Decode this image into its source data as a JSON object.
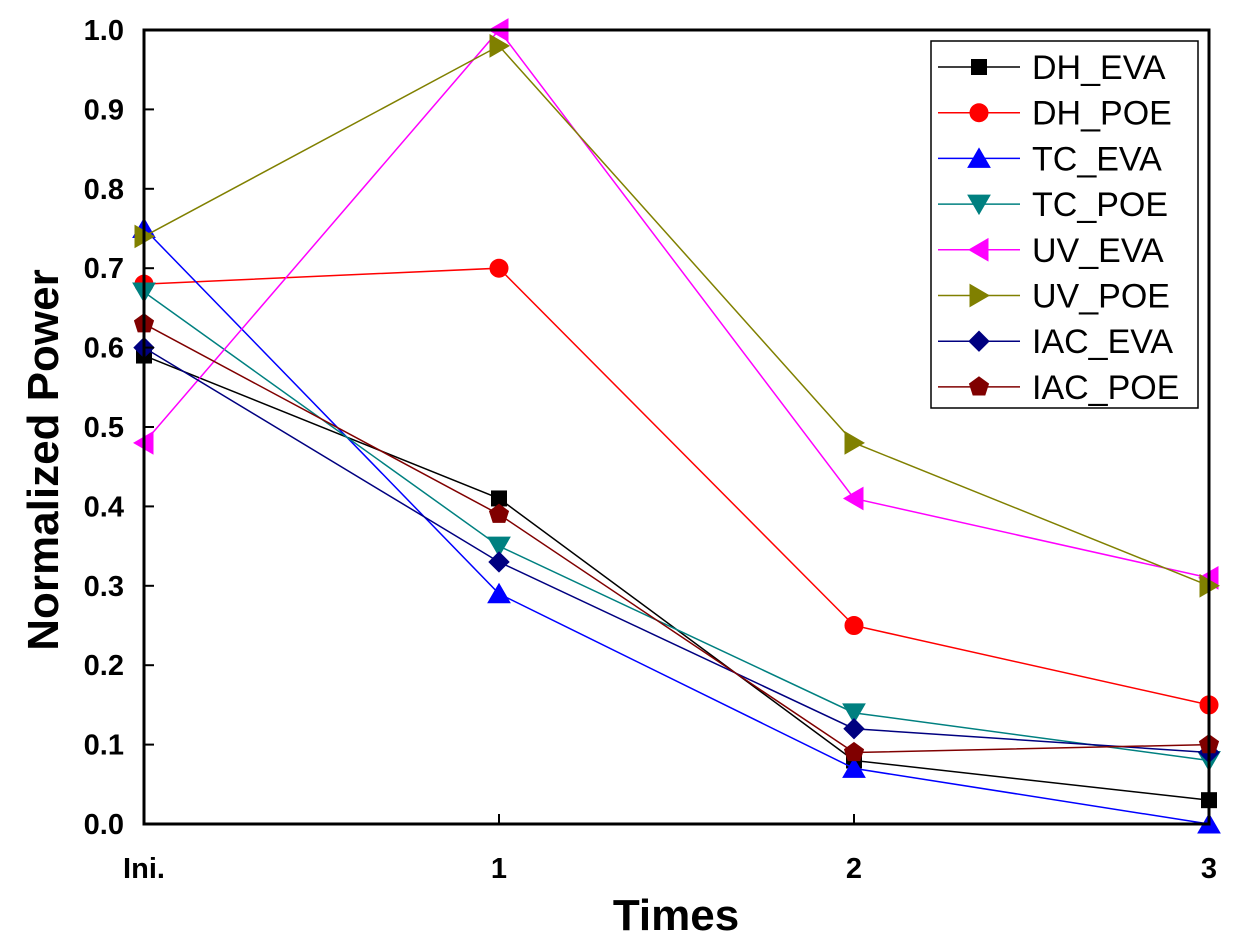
{
  "chart_data": {
    "type": "line",
    "title": "",
    "xlabel": "Times",
    "ylabel": "Normalized Power",
    "categories": [
      "Ini.",
      "1",
      "2",
      "3"
    ],
    "ylim": [
      0.0,
      1.0
    ],
    "yticks": [
      "0.0",
      "0.1",
      "0.2",
      "0.3",
      "0.4",
      "0.5",
      "0.6",
      "0.7",
      "0.8",
      "0.9",
      "1.0"
    ],
    "legend_position": "top-right",
    "grid": false,
    "series": [
      {
        "name": "DH_EVA",
        "color": "#000000",
        "marker": "square",
        "values": [
          0.59,
          0.41,
          0.08,
          0.03
        ]
      },
      {
        "name": "DH_POE",
        "color": "#ff0000",
        "marker": "circle",
        "values": [
          0.68,
          0.7,
          0.25,
          0.15
        ]
      },
      {
        "name": "TC_EVA",
        "color": "#0000ff",
        "marker": "triangle-up",
        "values": [
          0.75,
          0.29,
          0.07,
          0.0
        ]
      },
      {
        "name": "TC_POE",
        "color": "#008080",
        "marker": "triangle-down",
        "values": [
          0.67,
          0.35,
          0.14,
          0.08
        ]
      },
      {
        "name": "UV_EVA",
        "color": "#ff00ff",
        "marker": "triangle-left",
        "values": [
          0.48,
          1.0,
          0.41,
          0.31
        ]
      },
      {
        "name": "UV_POE",
        "color": "#808000",
        "marker": "triangle-right",
        "values": [
          0.74,
          0.98,
          0.48,
          0.3
        ]
      },
      {
        "name": "IAC_EVA",
        "color": "#000080",
        "marker": "diamond",
        "values": [
          0.6,
          0.33,
          0.12,
          0.09
        ]
      },
      {
        "name": "IAC_POE",
        "color": "#800000",
        "marker": "pentagon",
        "values": [
          0.63,
          0.39,
          0.09,
          0.1
        ]
      }
    ]
  }
}
